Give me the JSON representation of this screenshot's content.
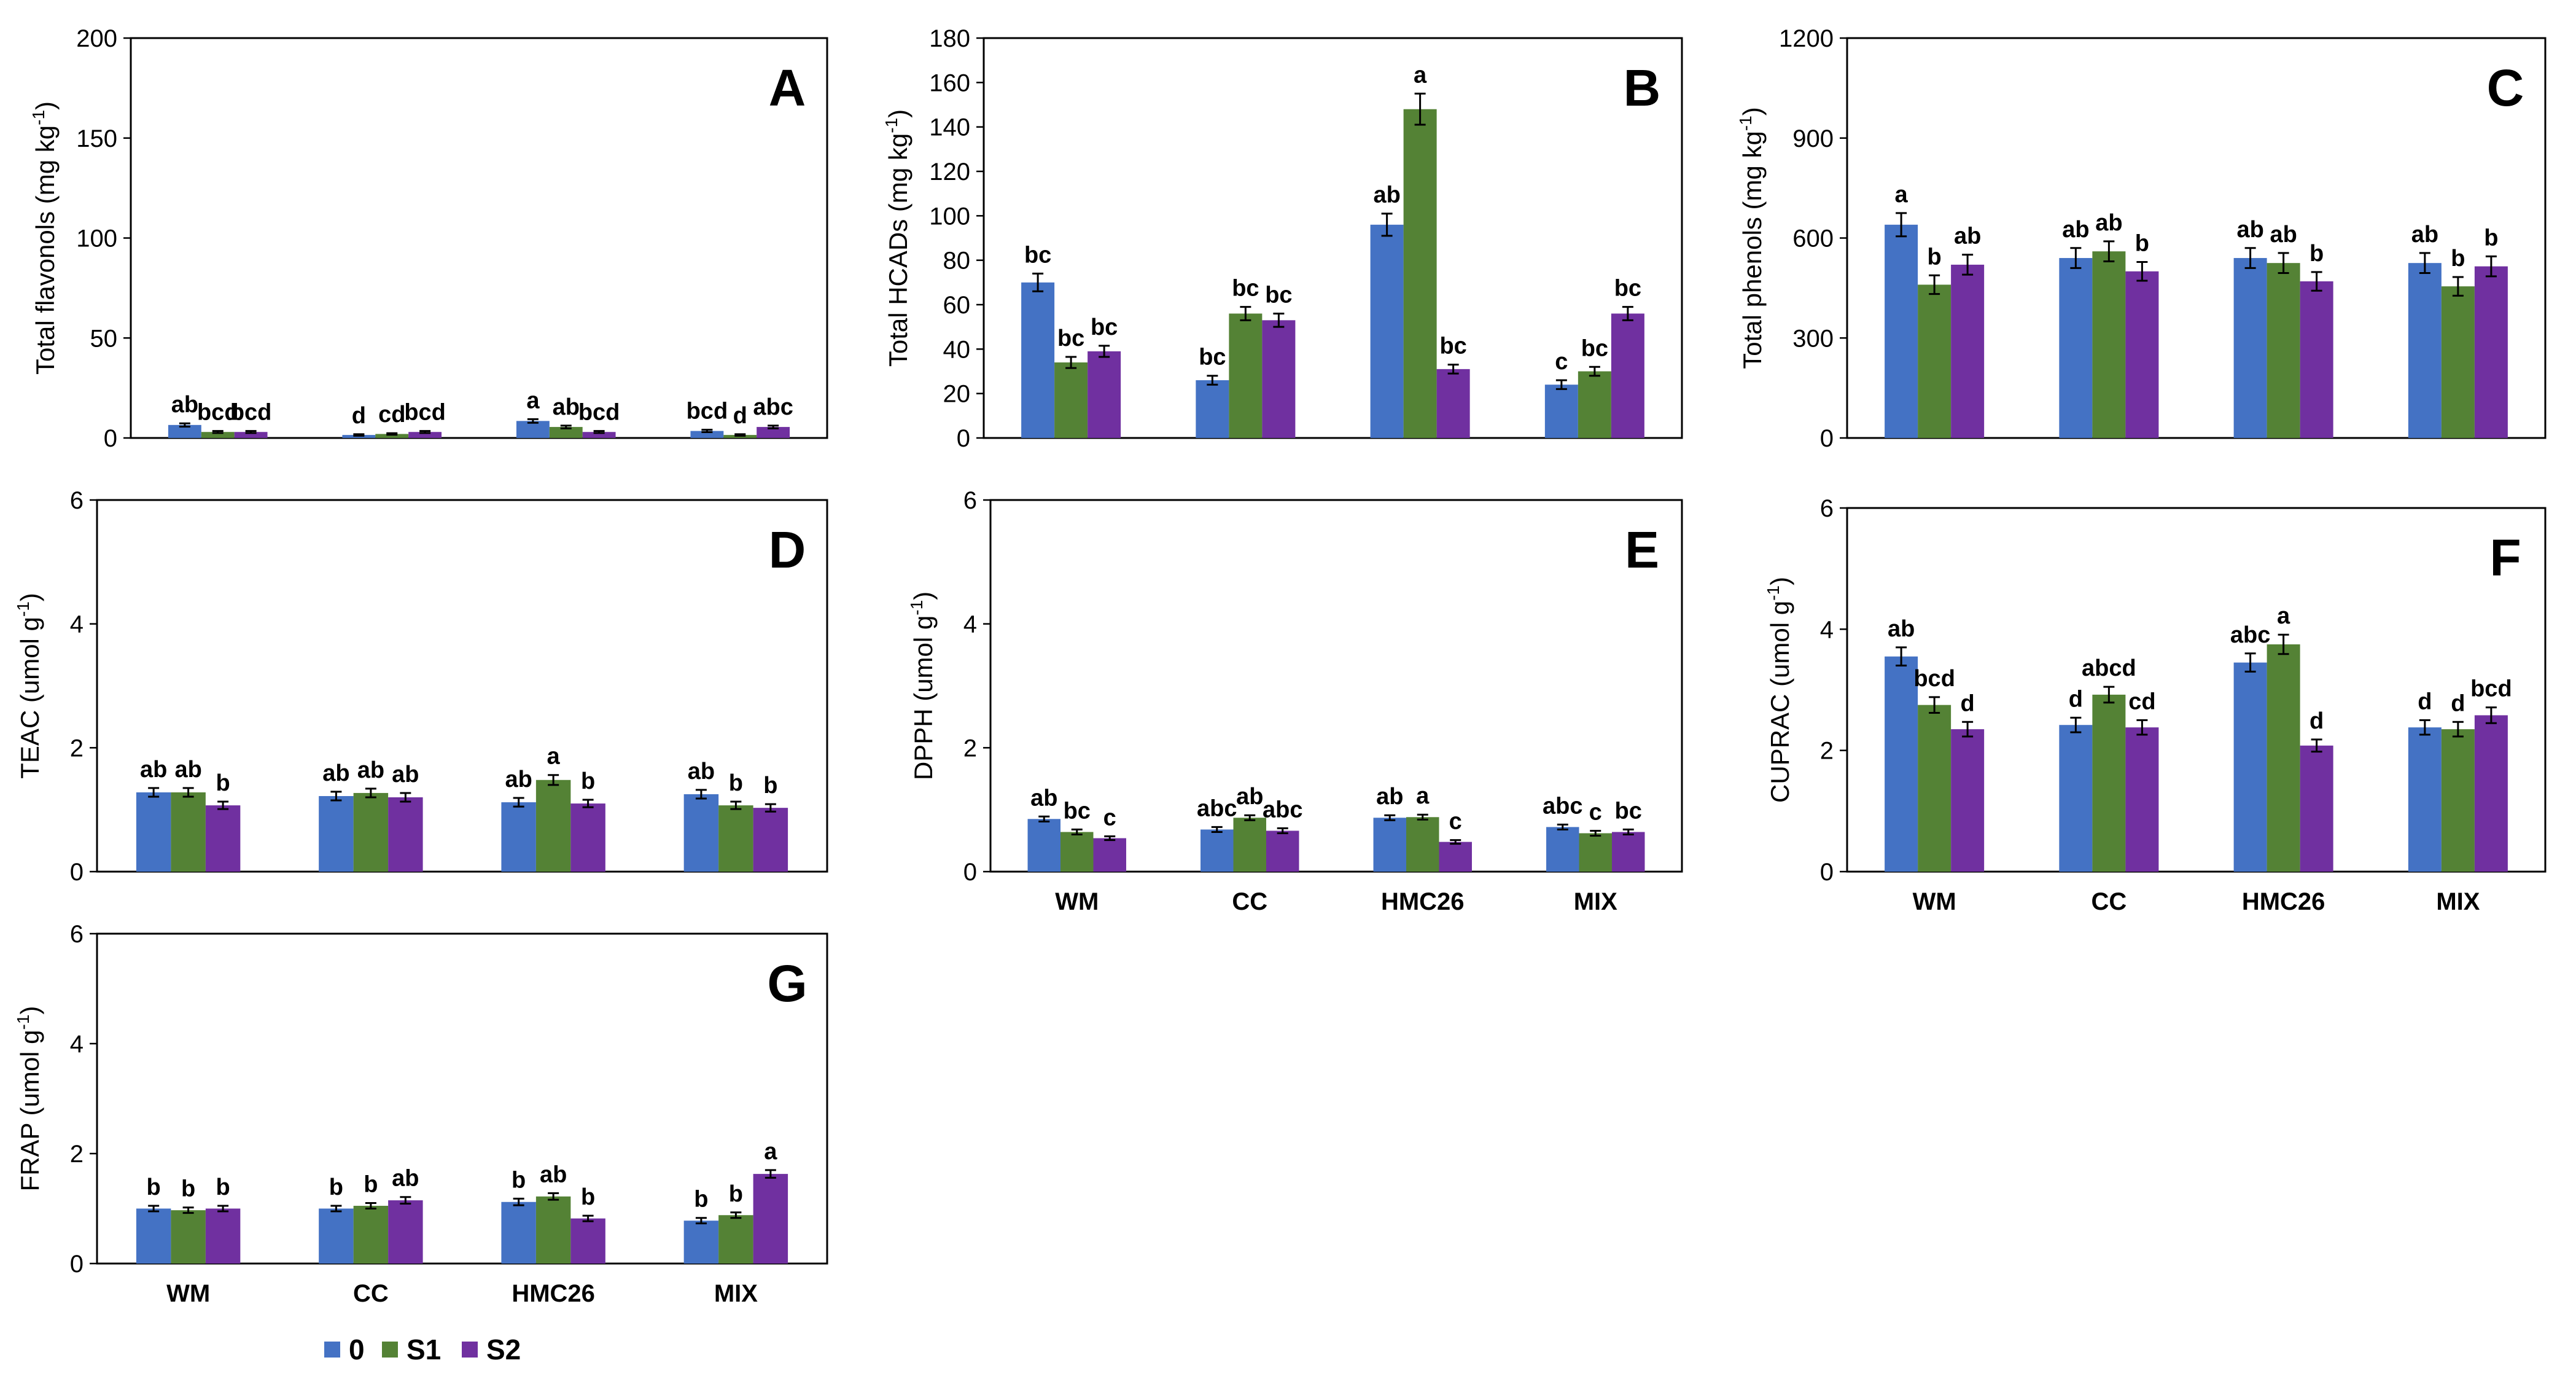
{
  "legend": {
    "items": [
      {
        "label": "0",
        "color": "#4472C4"
      },
      {
        "label": "S1",
        "color": "#548235"
      },
      {
        "label": "S2",
        "color": "#7030A0"
      }
    ]
  },
  "chart_data": [
    {
      "type": "bar",
      "panel": "A",
      "ylabel": "Total flavonols (mg kg-1)",
      "ylabel_base": "Total flavonols (mg kg",
      "ylabel_sup": "-1",
      "ylabel_end": ")",
      "ylim": [
        0,
        200
      ],
      "yticks": [
        0,
        50,
        100,
        150,
        200
      ],
      "categories": [
        "WM",
        "CC",
        "HMC26",
        "MIX"
      ],
      "show_categories": false,
      "series": [
        {
          "name": "0",
          "values": [
            6.5,
            1.5,
            8.5,
            3.5
          ],
          "errors": [
            0.8,
            0.4,
            0.9,
            0.6
          ],
          "labels": [
            "ab",
            "d",
            "a",
            "bcd"
          ]
        },
        {
          "name": "S1",
          "values": [
            3.0,
            2.0,
            5.5,
            1.5
          ],
          "errors": [
            0.5,
            0.4,
            0.7,
            0.4
          ],
          "labels": [
            "bcd",
            "cd",
            "ab",
            "d"
          ]
        },
        {
          "name": "S2",
          "values": [
            3.0,
            3.0,
            3.0,
            5.5
          ],
          "errors": [
            0.5,
            0.5,
            0.5,
            0.7
          ],
          "labels": [
            "bcd",
            "bcd",
            "bcd",
            "abc"
          ]
        }
      ]
    },
    {
      "type": "bar",
      "panel": "B",
      "ylabel": "Total HCADs (mg kg-1)",
      "ylabel_base": "Total HCADs (mg kg",
      "ylabel_sup": "-1",
      "ylabel_end": ")",
      "ylim": [
        0,
        180
      ],
      "yticks": [
        0,
        20,
        40,
        60,
        80,
        100,
        120,
        140,
        160,
        180
      ],
      "categories": [
        "WM",
        "CC",
        "HMC26",
        "MIX"
      ],
      "show_categories": false,
      "series": [
        {
          "name": "0",
          "values": [
            70,
            26,
            96,
            24
          ],
          "errors": [
            4,
            2,
            5,
            2
          ],
          "labels": [
            "bc",
            "bc",
            "ab",
            "c"
          ]
        },
        {
          "name": "S1",
          "values": [
            34,
            56,
            148,
            30
          ],
          "errors": [
            2.5,
            3,
            7,
            2
          ],
          "labels": [
            "bc",
            "bc",
            "a",
            "bc"
          ]
        },
        {
          "name": "S2",
          "values": [
            39,
            53,
            31,
            56
          ],
          "errors": [
            2.5,
            3,
            2,
            3
          ],
          "labels": [
            "bc",
            "bc",
            "bc",
            "bc"
          ]
        }
      ]
    },
    {
      "type": "bar",
      "panel": "C",
      "ylabel": "Total phenols (mg kg-1)",
      "ylabel_base": "Total phenols (mg kg",
      "ylabel_sup": "-1",
      "ylabel_end": ")",
      "ylim": [
        0,
        1200
      ],
      "yticks": [
        0,
        300,
        600,
        900,
        1200
      ],
      "categories": [
        "WM",
        "CC",
        "HMC26",
        "MIX"
      ],
      "show_categories": false,
      "series": [
        {
          "name": "0",
          "values": [
            640,
            540,
            540,
            525
          ],
          "errors": [
            35,
            30,
            30,
            30
          ],
          "labels": [
            "a",
            "ab",
            "ab",
            "ab"
          ]
        },
        {
          "name": "S1",
          "values": [
            460,
            560,
            525,
            455
          ],
          "errors": [
            28,
            30,
            30,
            28
          ],
          "labels": [
            "b",
            "ab",
            "ab",
            "b"
          ]
        },
        {
          "name": "S2",
          "values": [
            520,
            500,
            470,
            515
          ],
          "errors": [
            30,
            28,
            28,
            30
          ],
          "labels": [
            "ab",
            "b",
            "b",
            "b"
          ]
        }
      ]
    },
    {
      "type": "bar",
      "panel": "D",
      "ylabel": "TEAC (umol g-1)",
      "ylabel_base": "TEAC (umol g",
      "ylabel_sup": "-1",
      "ylabel_end": ")",
      "ylim": [
        0,
        6
      ],
      "yticks": [
        0,
        2,
        4,
        6
      ],
      "categories": [
        "WM",
        "CC",
        "HMC26",
        "MIX"
      ],
      "show_categories": false,
      "series": [
        {
          "name": "0",
          "values": [
            1.28,
            1.22,
            1.12,
            1.25
          ],
          "errors": [
            0.07,
            0.07,
            0.07,
            0.07
          ],
          "labels": [
            "ab",
            "ab",
            "ab",
            "ab"
          ]
        },
        {
          "name": "S1",
          "values": [
            1.28,
            1.27,
            1.48,
            1.07
          ],
          "errors": [
            0.07,
            0.07,
            0.08,
            0.06
          ],
          "labels": [
            "ab",
            "ab",
            "a",
            "b"
          ]
        },
        {
          "name": "S2",
          "values": [
            1.07,
            1.2,
            1.1,
            1.03
          ],
          "errors": [
            0.06,
            0.07,
            0.06,
            0.06
          ],
          "labels": [
            "b",
            "ab",
            "b",
            "b"
          ]
        }
      ]
    },
    {
      "type": "bar",
      "panel": "E",
      "ylabel": "DPPH (umol g-1)",
      "ylabel_base": "DPPH (umol g",
      "ylabel_sup": "-1",
      "ylabel_end": ")",
      "ylim": [
        0,
        6
      ],
      "yticks": [
        0,
        2,
        4,
        6
      ],
      "categories": [
        "WM",
        "CC",
        "HMC26",
        "MIX"
      ],
      "show_categories": true,
      "series": [
        {
          "name": "0",
          "values": [
            0.85,
            0.68,
            0.87,
            0.72
          ],
          "errors": [
            0.04,
            0.04,
            0.04,
            0.04
          ],
          "labels": [
            "ab",
            "abc",
            "ab",
            "abc"
          ]
        },
        {
          "name": "S1",
          "values": [
            0.64,
            0.87,
            0.88,
            0.62
          ],
          "errors": [
            0.04,
            0.04,
            0.04,
            0.04
          ],
          "labels": [
            "bc",
            "ab",
            "a",
            "c"
          ]
        },
        {
          "name": "S2",
          "values": [
            0.54,
            0.66,
            0.48,
            0.64
          ],
          "errors": [
            0.03,
            0.04,
            0.03,
            0.04
          ],
          "labels": [
            "c",
            "abc",
            "c",
            "bc"
          ]
        }
      ]
    },
    {
      "type": "bar",
      "panel": "F",
      "ylabel": "CUPRAC (umol g-1)",
      "ylabel_base": "CUPRAC (umol g",
      "ylabel_sup": "-1",
      "ylabel_end": ")",
      "ylim": [
        0,
        6
      ],
      "yticks": [
        0,
        2,
        4,
        6
      ],
      "categories": [
        "WM",
        "CC",
        "HMC26",
        "MIX"
      ],
      "show_categories": true,
      "series": [
        {
          "name": "0",
          "values": [
            3.55,
            2.42,
            3.45,
            2.38
          ],
          "errors": [
            0.15,
            0.12,
            0.15,
            0.12
          ],
          "labels": [
            "ab",
            "d",
            "abc",
            "d"
          ]
        },
        {
          "name": "S1",
          "values": [
            2.75,
            2.92,
            3.75,
            2.35
          ],
          "errors": [
            0.13,
            0.13,
            0.16,
            0.12
          ],
          "labels": [
            "bcd",
            "abcd",
            "a",
            "d"
          ]
        },
        {
          "name": "S2",
          "values": [
            2.35,
            2.38,
            2.08,
            2.58
          ],
          "errors": [
            0.12,
            0.12,
            0.1,
            0.13
          ],
          "labels": [
            "d",
            "cd",
            "d",
            "bcd"
          ]
        }
      ]
    },
    {
      "type": "bar",
      "panel": "G",
      "ylabel": "FRAP (umol g-1)",
      "ylabel_base": "FRAP (umol g",
      "ylabel_sup": "-1",
      "ylabel_end": ")",
      "ylim": [
        0,
        6
      ],
      "yticks": [
        0,
        2,
        4,
        6
      ],
      "categories": [
        "WM",
        "CC",
        "HMC26",
        "MIX"
      ],
      "show_categories": true,
      "series": [
        {
          "name": "0",
          "values": [
            1.0,
            1.0,
            1.12,
            0.78
          ],
          "errors": [
            0.05,
            0.05,
            0.06,
            0.05
          ],
          "labels": [
            "b",
            "b",
            "b",
            "b"
          ]
        },
        {
          "name": "S1",
          "values": [
            0.97,
            1.05,
            1.22,
            0.88
          ],
          "errors": [
            0.05,
            0.05,
            0.06,
            0.05
          ],
          "labels": [
            "b",
            "b",
            "ab",
            "b"
          ]
        },
        {
          "name": "S2",
          "values": [
            1.0,
            1.15,
            0.82,
            1.63
          ],
          "errors": [
            0.05,
            0.06,
            0.05,
            0.07
          ],
          "labels": [
            "b",
            "ab",
            "b",
            "a"
          ]
        }
      ]
    }
  ]
}
